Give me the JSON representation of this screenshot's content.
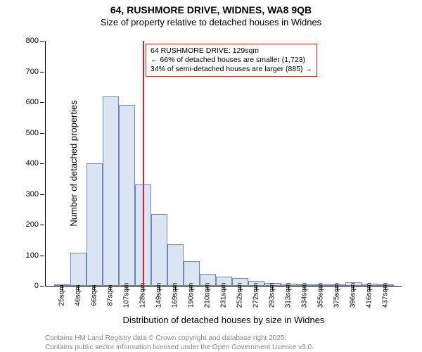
{
  "title": "64, RUSHMORE DRIVE, WIDNES, WA8 9QB",
  "subtitle": "Size of property relative to detached houses in Widnes",
  "chart": {
    "type": "histogram",
    "ylabel": "Number of detached properties",
    "xlabel": "Distribution of detached houses by size in Widnes",
    "ylim": [
      0,
      800
    ],
    "ytick_step": 100,
    "yticks": [
      0,
      100,
      200,
      300,
      400,
      500,
      600,
      700,
      800
    ],
    "bar_fill": "#dbe4f3",
    "bar_stroke": "#6f87b8",
    "bar_width_ratio": 1.0,
    "background": "#ffffff",
    "categories": [
      "25sqm",
      "46sqm",
      "66sqm",
      "87sqm",
      "107sqm",
      "128sqm",
      "149sqm",
      "169sqm",
      "190sqm",
      "210sqm",
      "231sqm",
      "252sqm",
      "272sqm",
      "293sqm",
      "313sqm",
      "334sqm",
      "355sqm",
      "375sqm",
      "396sqm",
      "416sqm",
      "437sqm"
    ],
    "values": [
      2,
      108,
      400,
      618,
      590,
      330,
      235,
      135,
      80,
      40,
      30,
      25,
      15,
      10,
      6,
      4,
      2,
      2,
      12,
      8,
      2
    ],
    "reference_line": {
      "category_index": 5,
      "color": "#d62728"
    },
    "annotation": {
      "lines": [
        "← 66% of detached houses are smaller (1,723)",
        "34% of semi-detached houses are larger (885) →"
      ],
      "header": "64 RUSHMORE DRIVE: 129sqm"
    }
  },
  "footer": [
    "Contains HM Land Registry data © Crown copyright and database right 2025.",
    "Contains public sector information licensed under the Open Government Licence v3.0."
  ]
}
